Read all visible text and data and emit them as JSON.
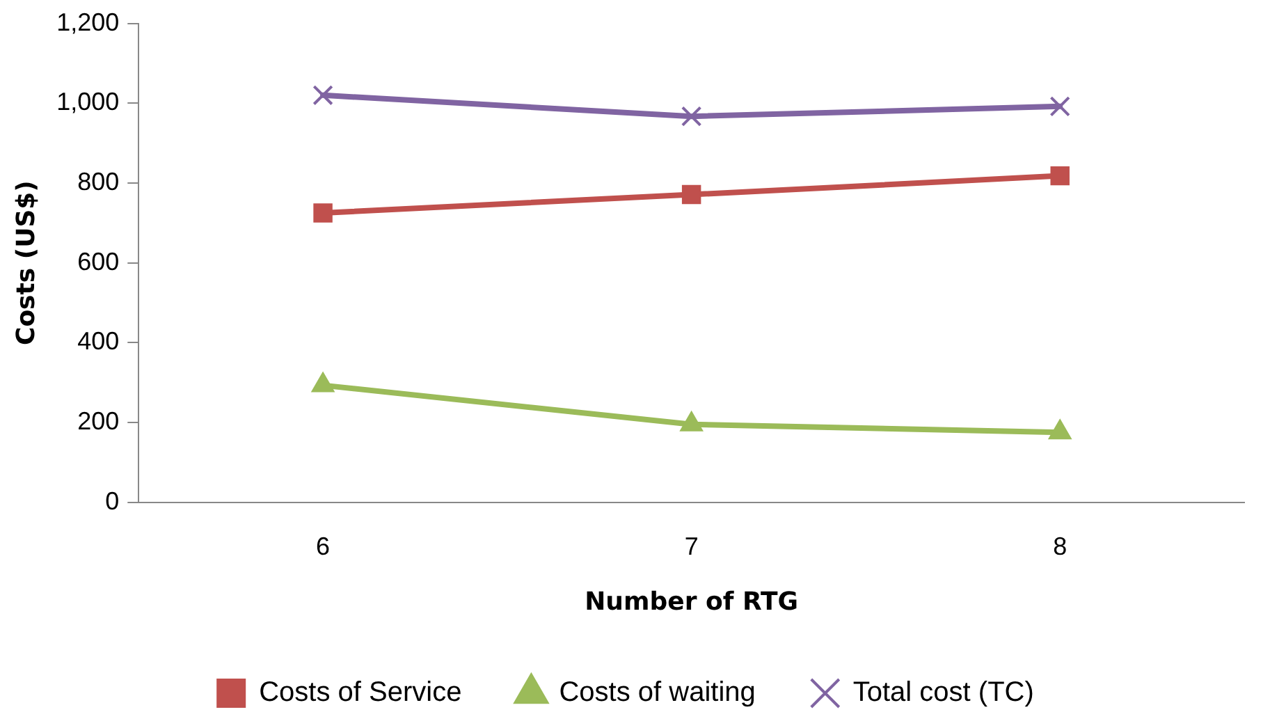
{
  "chart_data": {
    "type": "line",
    "xlabel": "Number of RTG",
    "ylabel": "Costs (US$)",
    "categories": [
      "6",
      "7",
      "8"
    ],
    "series": [
      {
        "name": "Costs of Service",
        "color": "#c0504d",
        "marker": "square",
        "values": [
          725,
          771,
          818
        ]
      },
      {
        "name": "Costs of waiting",
        "color": "#9bbb59",
        "marker": "triangle",
        "values": [
          293,
          195,
          175
        ]
      },
      {
        "name": "Total cost (TC)",
        "color": "#8064a2",
        "marker": "cross",
        "values": [
          1020,
          967,
          992
        ]
      }
    ],
    "ylim": [
      0,
      1200
    ],
    "yticks": [
      {
        "value": 0,
        "label": "0"
      },
      {
        "value": 200,
        "label": "200"
      },
      {
        "value": 400,
        "label": "400"
      },
      {
        "value": 600,
        "label": "600"
      },
      {
        "value": 800,
        "label": "800"
      },
      {
        "value": 1000,
        "label": "1,000"
      },
      {
        "value": 1200,
        "label": "1,200"
      }
    ],
    "grid": false,
    "legend": "bottom",
    "line_style": "solid"
  }
}
